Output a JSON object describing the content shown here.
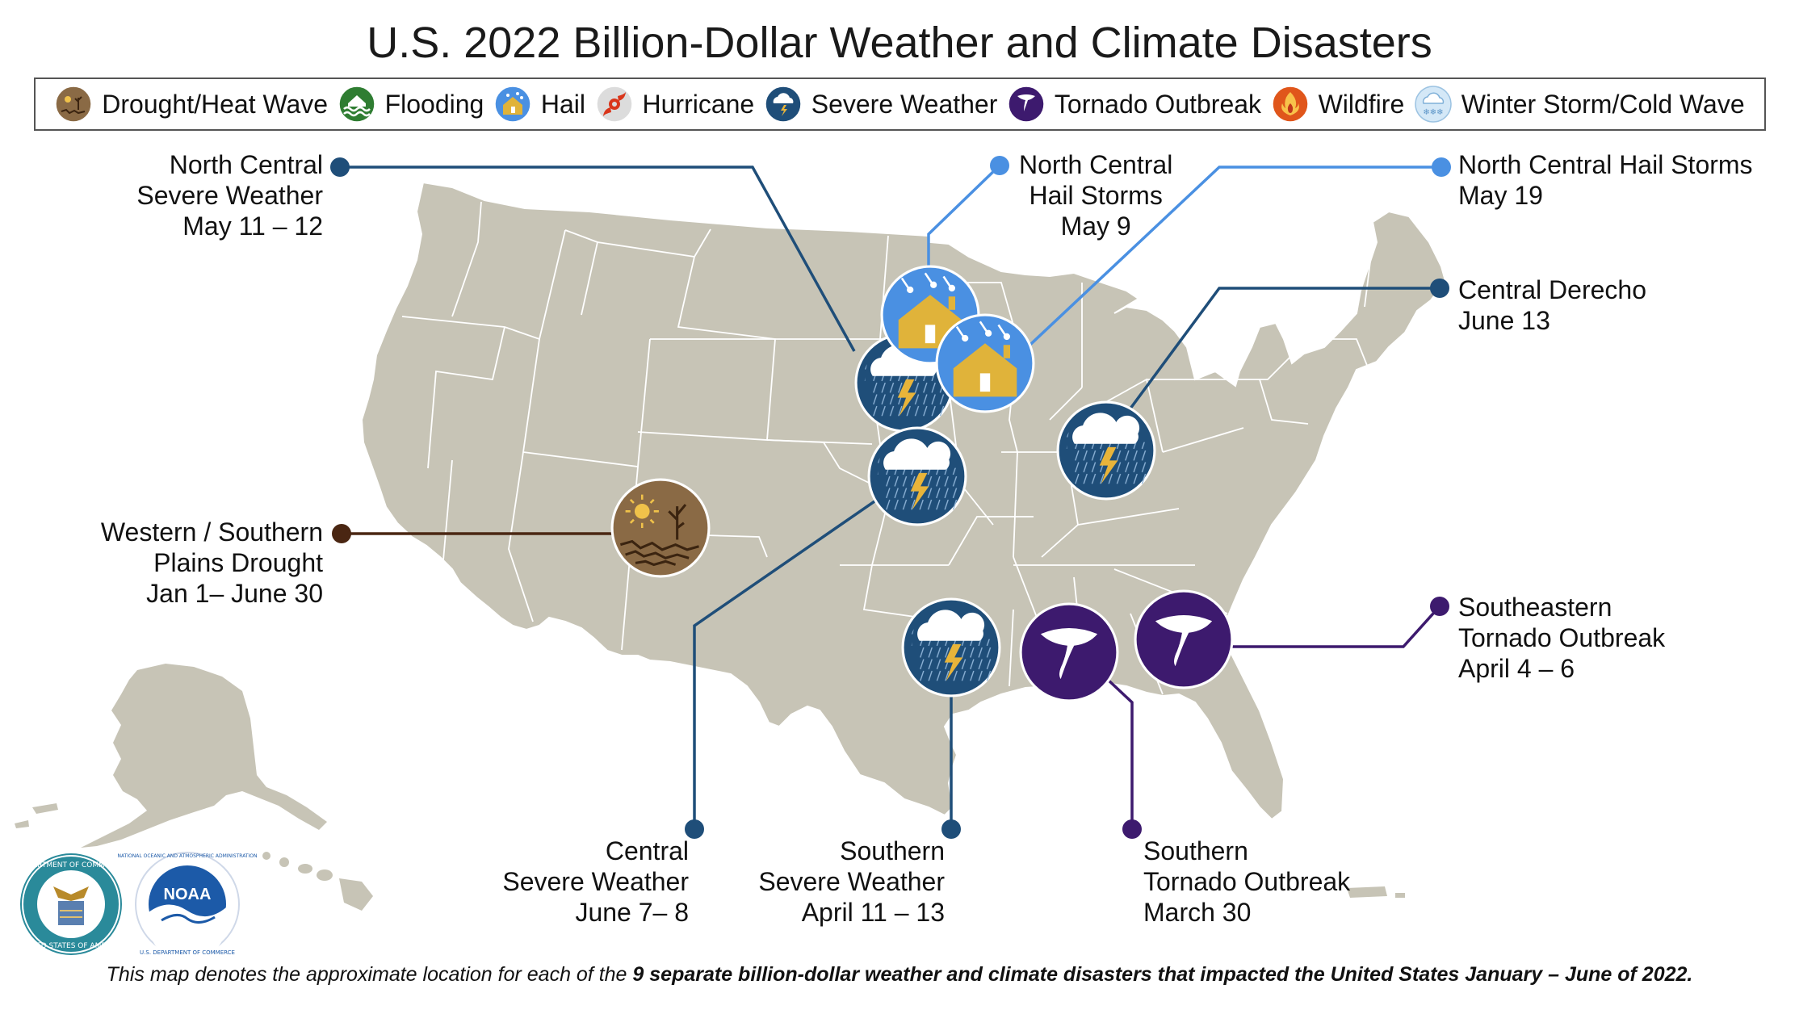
{
  "title": "U.S. 2022 Billion-Dollar Weather and Climate Disasters",
  "legend": [
    {
      "label": "Drought/Heat Wave",
      "icon": "drought-icon",
      "color": "#8a6a45"
    },
    {
      "label": "Flooding",
      "icon": "flooding-icon",
      "color": "#2f7d32"
    },
    {
      "label": "Hail",
      "icon": "hail-icon",
      "color": "#4a90e2"
    },
    {
      "label": "Hurricane",
      "icon": "hurricane-icon",
      "color": "#d9d9d9"
    },
    {
      "label": "Severe Weather",
      "icon": "severe-weather-icon",
      "color": "#1f4e79"
    },
    {
      "label": "Tornado Outbreak",
      "icon": "tornado-icon",
      "color": "#3d1a6e"
    },
    {
      "label": "Wildfire",
      "icon": "wildfire-icon",
      "color": "#e0561b"
    },
    {
      "label": "Winter Storm/Cold Wave",
      "icon": "winter-storm-icon",
      "color": "#cfe6f7"
    }
  ],
  "events": [
    {
      "type": "Severe Weather",
      "lines": [
        "North Central",
        "Severe Weather",
        "May 11 – 12"
      ]
    },
    {
      "type": "Hail",
      "lines": [
        "North Central",
        "Hail Storms",
        "May 9"
      ]
    },
    {
      "type": "Hail",
      "lines": [
        "North Central Hail Storms",
        "May 19"
      ]
    },
    {
      "type": "Severe Weather",
      "lines": [
        "Central Derecho",
        "June 13"
      ]
    },
    {
      "type": "Drought/Heat Wave",
      "lines": [
        "Western / Southern",
        "Plains Drought",
        "Jan 1– June 30"
      ]
    },
    {
      "type": "Tornado Outbreak",
      "lines": [
        "Southeastern",
        "Tornado Outbreak",
        "April 4 – 6"
      ]
    },
    {
      "type": "Severe Weather",
      "lines": [
        "Central",
        "Severe Weather",
        "June 7– 8"
      ]
    },
    {
      "type": "Severe Weather",
      "lines": [
        "Southern",
        "Severe Weather",
        "April 11 – 13"
      ]
    },
    {
      "type": "Tornado Outbreak",
      "lines": [
        "Southern",
        "Tornado Outbreak",
        "March 30"
      ]
    }
  ],
  "seals": {
    "commerce": [
      "DEPARTMENT OF COMMERCE",
      "UNITED STATES OF AMERICA"
    ],
    "noaa": [
      "NATIONAL OCEANIC AND ATMOSPHERIC ADMINISTRATION",
      "U.S. DEPARTMENT OF COMMERCE",
      "NOAA"
    ]
  },
  "footnote": {
    "pre": "This map denotes the approximate location for each of the ",
    "bold": "9 separate billion-dollar weather and climate disasters that impacted the United States January – June of 2022."
  },
  "colors": {
    "land": "#c7c4b6",
    "severe": "#1f4e79",
    "hail": "#4a90e2",
    "tornado": "#3d1a6e",
    "drought": "#8a6a45",
    "drought_line": "#4a2612"
  }
}
